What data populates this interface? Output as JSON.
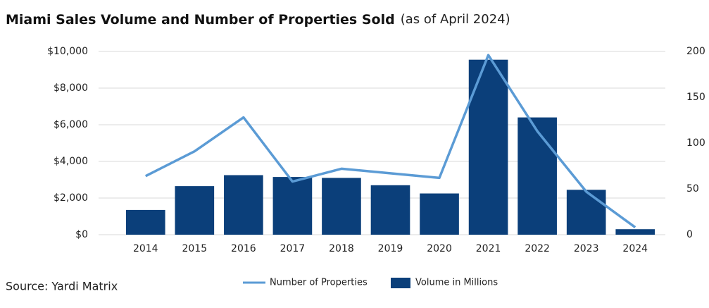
{
  "chart_data": {
    "type": "bar",
    "title": "Miami Sales Volume and Number of Properties Sold",
    "subtitle": "(as of April 2024)",
    "source": "Source: Yardi Matrix",
    "categories": [
      "2014",
      "2015",
      "2016",
      "2017",
      "2018",
      "2019",
      "2020",
      "2021",
      "2022",
      "2023",
      "2024"
    ],
    "series": [
      {
        "name": "Volume in Millions",
        "type": "bar",
        "axis": "y",
        "color": "#0b3f7a",
        "values": [
          1350,
          2650,
          3250,
          3150,
          3100,
          2700,
          2250,
          9550,
          6400,
          2450,
          300
        ]
      },
      {
        "name": "Number of Properties",
        "type": "line",
        "axis": "y2",
        "color": "#5b9bd5",
        "values": [
          64,
          91,
          128,
          58,
          72,
          67,
          62,
          196,
          113,
          47,
          8
        ]
      }
    ],
    "ylim": [
      0,
      10000
    ],
    "yticks": [
      {
        "value": 0,
        "label": "$0"
      },
      {
        "value": 2000,
        "label": "$2,000"
      },
      {
        "value": 4000,
        "label": "$4,000"
      },
      {
        "value": 6000,
        "label": "$6,000"
      },
      {
        "value": 8000,
        "label": "$8,000"
      },
      {
        "value": 10000,
        "label": "$10,000"
      }
    ],
    "y2lim": [
      0,
      200
    ],
    "y2ticks": [
      0,
      50,
      100,
      150,
      200
    ],
    "grid": true,
    "legend": "bottom"
  }
}
